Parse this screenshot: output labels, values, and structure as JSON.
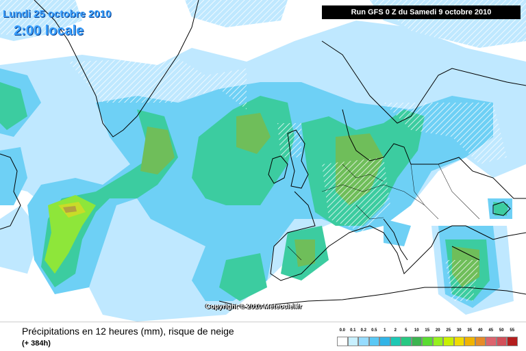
{
  "map": {
    "date_label": "Lundi 25 octobre 2010",
    "time_label": "2:00 locale",
    "run_label": "Run GFS 0 Z du Samedi 9 octobre 2010",
    "copyright": "Copyright © 2010 Meteociel.fr"
  },
  "footer": {
    "title": "Précipitations en 12 heures (mm), risque de neige",
    "subtitle": "(+ 384h)"
  },
  "legend": {
    "labels": [
      "0.0",
      "0.1",
      "0.2",
      "0.5",
      "1",
      "2",
      "5",
      "10",
      "15",
      "20",
      "25",
      "30",
      "35",
      "40",
      "45",
      "50",
      "55"
    ],
    "colors": [
      "#ffffff",
      "#c8f0ff",
      "#96dcff",
      "#5ac8f5",
      "#32b4e6",
      "#1ec8b4",
      "#28c882",
      "#3cb450",
      "#5adc32",
      "#96f01e",
      "#c8f000",
      "#f0dc00",
      "#f0b400",
      "#e68c28",
      "#dc646e",
      "#d2505a",
      "#b41e1e"
    ]
  }
}
